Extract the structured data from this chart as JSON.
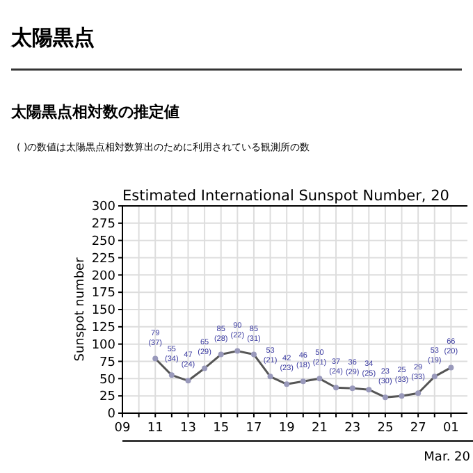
{
  "chart_data": {
    "type": "line",
    "title": "Estimated International Sunspot Number, 20",
    "ylabel": "Sunspot number",
    "annotations": [
      "太陽黒点",
      "太陽黒点相対数の推定値",
      "( )の数値は太陽黒点相対数算出のために利用されている観測所の数",
      "Mar. 20"
    ],
    "x": [
      "--02-11",
      "--02-12",
      "--02-13",
      "--02-14",
      "--02-15",
      "--02-16",
      "--02-17",
      "--02-18",
      "--02-19",
      "--02-20",
      "--02-21",
      "--02-22",
      "--02-23",
      "--02-24",
      "--02-25",
      "--02-26",
      "--02-27",
      "--02-28",
      "--03-01"
    ],
    "series": [
      {
        "color": "#555555",
        "values": [
          79,
          55,
          47,
          65,
          85,
          90,
          85,
          53,
          42,
          46,
          50,
          37,
          36,
          34,
          23,
          25,
          29,
          53,
          66
        ],
        "value_labels": [
          "79\n(37)",
          "55\n(34)",
          "47\n(24)",
          "65\n(29)",
          "85\n(28)",
          "90\n(22)",
          "85\n(31)",
          "53\n(21)",
          "42\n(23)",
          "46\n(18)",
          "50\n(21)",
          "37\n(24)",
          "36\n(29)",
          "34\n(25)",
          "23\n(30)",
          "25\n(33)",
          "29\n(33)",
          "53\n(19)",
          "66\n(20)"
        ]
      }
    ],
    "xlim": [
      "--02-09",
      "--03-02"
    ],
    "xticks": [
      {
        "value": "--02-09",
        "label": "09"
      },
      {
        "value": "--02-10",
        "label": null
      },
      {
        "value": "--02-11",
        "label": "11"
      },
      {
        "value": "--02-12",
        "label": null
      },
      {
        "value": "--02-13",
        "label": "13"
      },
      {
        "value": "--02-14",
        "label": null
      },
      {
        "value": "--02-15",
        "label": "15"
      },
      {
        "value": "--02-16",
        "label": null
      },
      {
        "value": "--02-17",
        "label": "17"
      },
      {
        "value": "--02-18",
        "label": null
      },
      {
        "value": "--02-19",
        "label": "19"
      },
      {
        "value": "--02-20",
        "label": null
      },
      {
        "value": "--02-21",
        "label": "21"
      },
      {
        "value": "--02-22",
        "label": null
      },
      {
        "value": "--02-23",
        "label": "23"
      },
      {
        "value": "--02-24",
        "label": null
      },
      {
        "value": "--02-25",
        "label": "25"
      },
      {
        "value": "--02-26",
        "label": null
      },
      {
        "value": "--02-27",
        "label": "27"
      },
      {
        "value": "--02-28",
        "label": null
      },
      {
        "value": "--03-01",
        "label": "01"
      }
    ],
    "ylim": [
      0,
      300
    ],
    "yticks": [
      0,
      25,
      50,
      75,
      100,
      125,
      150,
      175,
      200,
      225,
      250,
      275,
      300
    ],
    "grid": true,
    "marker": "circle",
    "line_style": "solid"
  }
}
